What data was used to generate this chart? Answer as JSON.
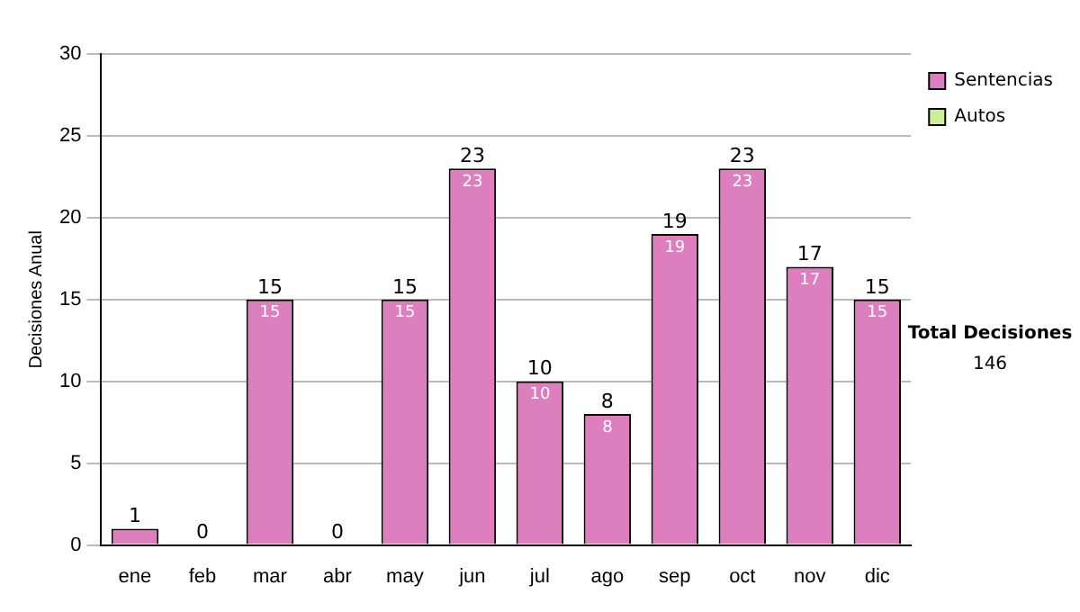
{
  "chart_data": {
    "type": "bar",
    "stacked": true,
    "ylabel": "Decisiones Anual",
    "categories": [
      "ene",
      "feb",
      "mar",
      "abr",
      "may",
      "jun",
      "jul",
      "ago",
      "sep",
      "oct",
      "nov",
      "dic"
    ],
    "series": [
      {
        "name": "Sentencias",
        "color": "#dd7fbf",
        "values": [
          1,
          0,
          15,
          0,
          15,
          23,
          10,
          8,
          19,
          23,
          17,
          15
        ],
        "value_labels": [
          null,
          null,
          "15",
          null,
          "15",
          "23",
          "10",
          "8",
          "19",
          "23",
          "17",
          "15"
        ]
      },
      {
        "name": "Autos",
        "color": "#ccee99",
        "values": [
          0,
          0,
          0,
          0,
          0,
          0,
          0,
          0,
          0,
          0,
          0,
          0
        ]
      }
    ],
    "totals": [
      "1",
      "0",
      "15",
      "0",
      "15",
      "23",
      "10",
      "8",
      "19",
      "23",
      "17",
      "15"
    ],
    "ylim": [
      0,
      30
    ],
    "yticks": [
      0,
      5,
      10,
      15,
      20,
      25,
      30
    ],
    "grid": "y",
    "legend": "right",
    "annotations": [
      "Total Decisiones",
      "146"
    ]
  }
}
